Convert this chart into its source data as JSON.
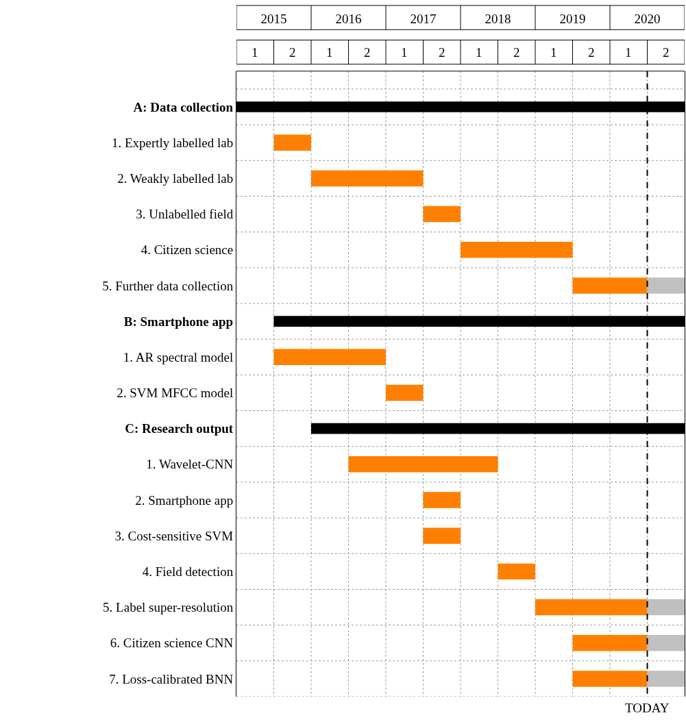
{
  "chart_data": {
    "type": "bar",
    "orientation": "horizontal",
    "categories": [
      "A: Data collection",
      "1. Expertly labelled lab",
      "2. Weakly labelled lab",
      "3. Unlabelled field",
      "4. Citizen science",
      "5. Further data collection",
      "B: Smartphone app",
      "1. AR spectral model",
      "2. SVM MFCC model",
      "C: Research output",
      "1. Wavelet-CNN",
      "2. Smartphone app",
      "3. Cost-sensitive SVM",
      "4. Field detection",
      "5. Label super-resolution",
      "6. Citizen science CNN",
      "7. Loss-calibrated BNN"
    ],
    "series": [
      {
        "color": "#000000",
        "base": [
          2014.5,
          null,
          null,
          null,
          null,
          null,
          2015,
          null,
          null,
          2015.5,
          null,
          null,
          null,
          null,
          null,
          null,
          null
        ],
        "values": [
          6,
          null,
          null,
          null,
          null,
          null,
          5.5,
          null,
          null,
          5,
          null,
          null,
          null,
          null,
          null,
          null,
          null
        ]
      },
      {
        "color": "#ff8000",
        "base": [
          null,
          2015,
          2015.5,
          2017,
          2017.5,
          2019,
          null,
          2015,
          2016.5,
          null,
          2016,
          2017,
          2017,
          2018,
          2018.5,
          2019,
          2019
        ],
        "values": [
          null,
          0.5,
          1.5,
          0.5,
          1.5,
          1,
          null,
          1.5,
          0.5,
          null,
          2,
          0.5,
          0.5,
          0.5,
          1.5,
          1,
          1
        ]
      },
      {
        "color": "#c0c0c0",
        "base": [
          null,
          null,
          null,
          null,
          null,
          2020,
          null,
          null,
          null,
          null,
          null,
          null,
          null,
          null,
          2020,
          2020,
          2020
        ],
        "values": [
          null,
          null,
          null,
          null,
          null,
          0.5,
          null,
          null,
          null,
          null,
          null,
          null,
          null,
          null,
          0.5,
          0.5,
          0.5
        ]
      }
    ],
    "xlim": [
      2014.5,
      2020.5
    ],
    "xticks": [
      2015,
      2016,
      2017,
      2018,
      2019,
      2020
    ],
    "annotations": [
      "1",
      "2",
      "1",
      "2",
      "1",
      "2",
      "1",
      "2",
      "1",
      "2",
      "1",
      "2"
    ],
    "ref_lines": [
      {
        "axis": "x",
        "value": 2020,
        "label": "TODAY",
        "color": "#000000",
        "line_style": "dashed"
      }
    ],
    "grid": true
  }
}
